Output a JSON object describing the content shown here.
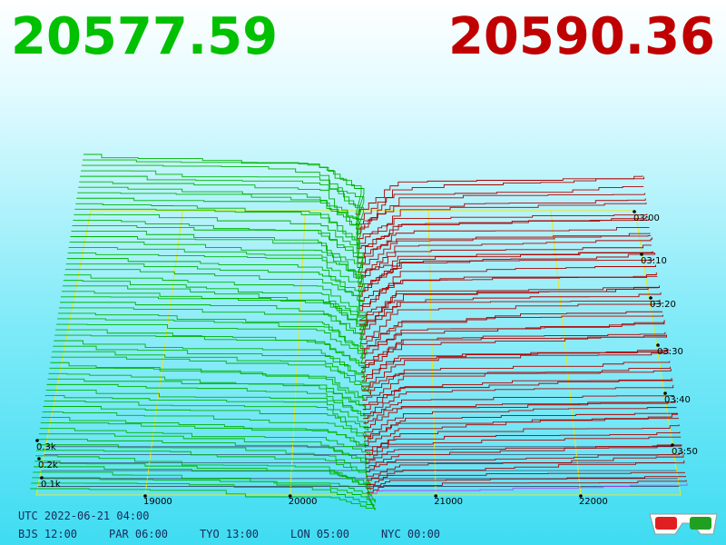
{
  "header": {
    "bid": "20577.59",
    "ask": "20590.36"
  },
  "axis": {
    "price_labels": [
      "19000",
      "20000",
      "21000",
      "22000"
    ],
    "size_labels": [
      "0.3k",
      "0.2k",
      "0.1k"
    ],
    "time_labels": [
      "03:00",
      "03:10",
      "03:20",
      "03:30",
      "03:40",
      "03:50"
    ]
  },
  "clocks": {
    "utc": "UTC 2022-06-21 04:00",
    "cities": [
      "BJS 12:00",
      "PAR 06:00",
      "TYO 13:00",
      "LON 05:00",
      "NYC 00:00"
    ]
  }
}
